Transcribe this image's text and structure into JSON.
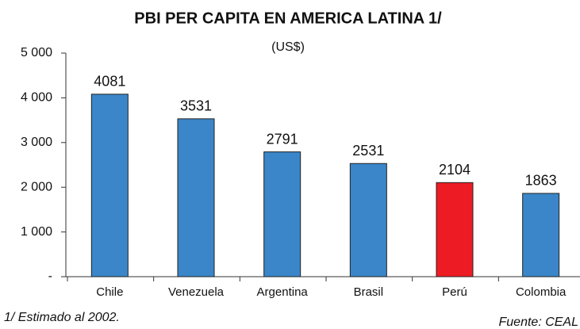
{
  "chart_data": {
    "type": "bar",
    "title": "PBI PER CAPITA EN AMERICA LATINA 1/",
    "subtitle": "(US$)",
    "categories": [
      "Chile",
      "Venezuela",
      "Argentina",
      "Brasil",
      "Perú",
      "Colombia"
    ],
    "values": [
      4081,
      3531,
      2791,
      2531,
      2104,
      1863
    ],
    "colors": [
      "#3a86c8",
      "#3a86c8",
      "#3a86c8",
      "#3a86c8",
      "#ed1c24",
      "#3a86c8"
    ],
    "ylim": [
      0,
      5000
    ],
    "yticks": [
      {
        "value": 0,
        "label": "-"
      },
      {
        "value": 1000,
        "label": "1 000"
      },
      {
        "value": 2000,
        "label": "2 000"
      },
      {
        "value": 3000,
        "label": "3 000"
      },
      {
        "value": 4000,
        "label": "4 000"
      },
      {
        "value": 5000,
        "label": "5 000"
      }
    ],
    "footnote": "1/ Estimado al 2002.",
    "source": "Fuente: CEAL"
  }
}
